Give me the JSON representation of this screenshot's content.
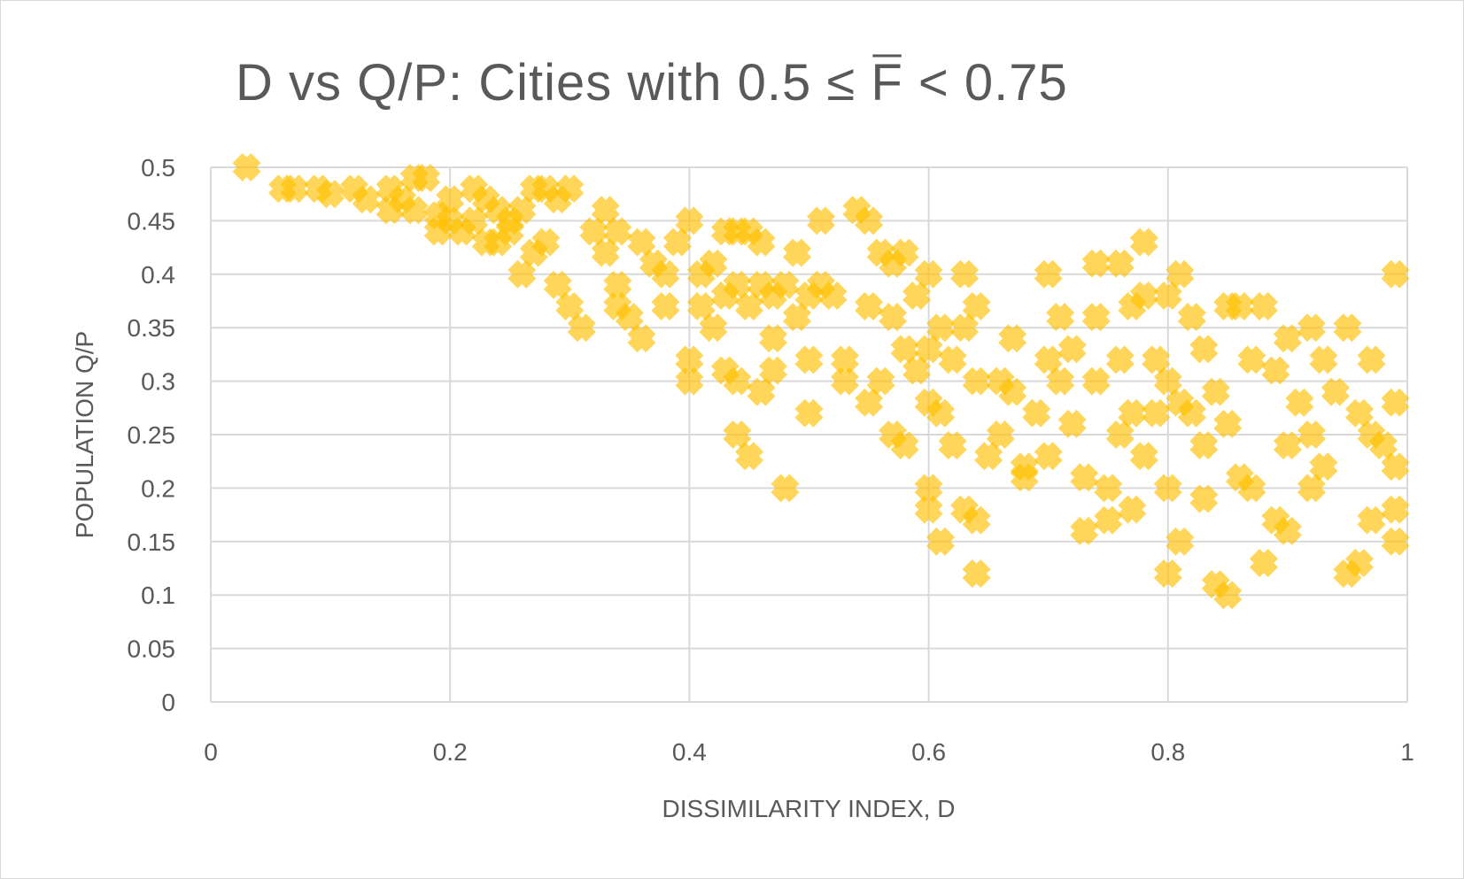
{
  "chart_data": {
    "type": "scatter",
    "title": "D  vs Q/P: Cities with 0.5 ≤  F̅ < 0.75",
    "title_parts": {
      "prefix": "D  vs Q/P: Cities with 0.5 ≤ ",
      "overbar_letter": "F",
      "suffix": " < 0.75"
    },
    "xlabel": "DISSIMILARITY INDEX, D",
    "ylabel": "POPULATION Q/P",
    "xlim": [
      0,
      1
    ],
    "ylim": [
      0,
      0.5
    ],
    "x_ticks": [
      "0",
      "0.2",
      "0.4",
      "0.6",
      "0.8",
      "1"
    ],
    "y_ticks": [
      "0",
      "0.05",
      "0.1",
      "0.15",
      "0.2",
      "0.25",
      "0.3",
      "0.35",
      "0.4",
      "0.45",
      "0.5"
    ],
    "grid": true,
    "legend": "none",
    "marker": "x",
    "color": "#ffc000",
    "series": [
      {
        "name": "Cities",
        "points": [
          [
            0.03,
            0.5
          ],
          [
            0.06,
            0.48
          ],
          [
            0.07,
            0.48
          ],
          [
            0.09,
            0.48
          ],
          [
            0.1,
            0.475
          ],
          [
            0.12,
            0.48
          ],
          [
            0.13,
            0.47
          ],
          [
            0.15,
            0.48
          ],
          [
            0.15,
            0.46
          ],
          [
            0.16,
            0.47
          ],
          [
            0.17,
            0.49
          ],
          [
            0.17,
            0.46
          ],
          [
            0.18,
            0.49
          ],
          [
            0.19,
            0.455
          ],
          [
            0.19,
            0.44
          ],
          [
            0.2,
            0.47
          ],
          [
            0.2,
            0.45
          ],
          [
            0.21,
            0.44
          ],
          [
            0.22,
            0.48
          ],
          [
            0.22,
            0.45
          ],
          [
            0.23,
            0.47
          ],
          [
            0.23,
            0.43
          ],
          [
            0.24,
            0.46
          ],
          [
            0.24,
            0.43
          ],
          [
            0.25,
            0.45
          ],
          [
            0.25,
            0.44
          ],
          [
            0.26,
            0.4
          ],
          [
            0.26,
            0.46
          ],
          [
            0.27,
            0.48
          ],
          [
            0.27,
            0.42
          ],
          [
            0.28,
            0.48
          ],
          [
            0.28,
            0.43
          ],
          [
            0.29,
            0.47
          ],
          [
            0.29,
            0.39
          ],
          [
            0.3,
            0.48
          ],
          [
            0.3,
            0.37
          ],
          [
            0.31,
            0.35
          ],
          [
            0.32,
            0.44
          ],
          [
            0.33,
            0.46
          ],
          [
            0.33,
            0.42
          ],
          [
            0.34,
            0.44
          ],
          [
            0.34,
            0.39
          ],
          [
            0.34,
            0.37
          ],
          [
            0.35,
            0.36
          ],
          [
            0.36,
            0.43
          ],
          [
            0.36,
            0.34
          ],
          [
            0.37,
            0.41
          ],
          [
            0.38,
            0.4
          ],
          [
            0.38,
            0.37
          ],
          [
            0.39,
            0.43
          ],
          [
            0.4,
            0.45
          ],
          [
            0.4,
            0.3
          ],
          [
            0.4,
            0.32
          ],
          [
            0.41,
            0.4
          ],
          [
            0.41,
            0.37
          ],
          [
            0.42,
            0.41
          ],
          [
            0.42,
            0.35
          ],
          [
            0.43,
            0.44
          ],
          [
            0.43,
            0.38
          ],
          [
            0.43,
            0.31
          ],
          [
            0.44,
            0.44
          ],
          [
            0.44,
            0.39
          ],
          [
            0.44,
            0.3
          ],
          [
            0.44,
            0.25
          ],
          [
            0.45,
            0.44
          ],
          [
            0.45,
            0.37
          ],
          [
            0.45,
            0.23
          ],
          [
            0.46,
            0.43
          ],
          [
            0.46,
            0.39
          ],
          [
            0.46,
            0.29
          ],
          [
            0.47,
            0.38
          ],
          [
            0.47,
            0.34
          ],
          [
            0.47,
            0.31
          ],
          [
            0.48,
            0.2
          ],
          [
            0.48,
            0.39
          ],
          [
            0.49,
            0.42
          ],
          [
            0.49,
            0.36
          ],
          [
            0.5,
            0.38
          ],
          [
            0.5,
            0.32
          ],
          [
            0.51,
            0.45
          ],
          [
            0.51,
            0.39
          ],
          [
            0.5,
            0.27
          ],
          [
            0.52,
            0.38
          ],
          [
            0.53,
            0.32
          ],
          [
            0.53,
            0.3
          ],
          [
            0.54,
            0.46
          ],
          [
            0.55,
            0.45
          ],
          [
            0.55,
            0.37
          ],
          [
            0.55,
            0.28
          ],
          [
            0.56,
            0.42
          ],
          [
            0.56,
            0.3
          ],
          [
            0.57,
            0.41
          ],
          [
            0.57,
            0.36
          ],
          [
            0.57,
            0.25
          ],
          [
            0.58,
            0.42
          ],
          [
            0.58,
            0.33
          ],
          [
            0.58,
            0.24
          ],
          [
            0.59,
            0.38
          ],
          [
            0.59,
            0.31
          ],
          [
            0.6,
            0.4
          ],
          [
            0.6,
            0.33
          ],
          [
            0.6,
            0.28
          ],
          [
            0.6,
            0.2
          ],
          [
            0.6,
            0.18
          ],
          [
            0.61,
            0.35
          ],
          [
            0.61,
            0.27
          ],
          [
            0.61,
            0.15
          ],
          [
            0.62,
            0.32
          ],
          [
            0.62,
            0.24
          ],
          [
            0.63,
            0.4
          ],
          [
            0.63,
            0.35
          ],
          [
            0.63,
            0.18
          ],
          [
            0.64,
            0.37
          ],
          [
            0.64,
            0.3
          ],
          [
            0.64,
            0.17
          ],
          [
            0.64,
            0.12
          ],
          [
            0.65,
            0.23
          ],
          [
            0.66,
            0.3
          ],
          [
            0.66,
            0.25
          ],
          [
            0.67,
            0.34
          ],
          [
            0.67,
            0.29
          ],
          [
            0.68,
            0.22
          ],
          [
            0.68,
            0.21
          ],
          [
            0.69,
            0.27
          ],
          [
            0.7,
            0.4
          ],
          [
            0.7,
            0.32
          ],
          [
            0.7,
            0.23
          ],
          [
            0.71,
            0.36
          ],
          [
            0.71,
            0.3
          ],
          [
            0.72,
            0.33
          ],
          [
            0.72,
            0.26
          ],
          [
            0.73,
            0.21
          ],
          [
            0.73,
            0.16
          ],
          [
            0.74,
            0.41
          ],
          [
            0.74,
            0.36
          ],
          [
            0.74,
            0.3
          ],
          [
            0.75,
            0.2
          ],
          [
            0.75,
            0.17
          ],
          [
            0.76,
            0.41
          ],
          [
            0.76,
            0.32
          ],
          [
            0.76,
            0.25
          ],
          [
            0.77,
            0.37
          ],
          [
            0.77,
            0.27
          ],
          [
            0.77,
            0.18
          ],
          [
            0.78,
            0.43
          ],
          [
            0.78,
            0.38
          ],
          [
            0.78,
            0.23
          ],
          [
            0.79,
            0.32
          ],
          [
            0.79,
            0.27
          ],
          [
            0.8,
            0.38
          ],
          [
            0.8,
            0.3
          ],
          [
            0.8,
            0.2
          ],
          [
            0.8,
            0.12
          ],
          [
            0.81,
            0.4
          ],
          [
            0.81,
            0.28
          ],
          [
            0.81,
            0.15
          ],
          [
            0.82,
            0.36
          ],
          [
            0.82,
            0.27
          ],
          [
            0.83,
            0.33
          ],
          [
            0.83,
            0.24
          ],
          [
            0.83,
            0.19
          ],
          [
            0.84,
            0.29
          ],
          [
            0.84,
            0.11
          ],
          [
            0.85,
            0.37
          ],
          [
            0.85,
            0.26
          ],
          [
            0.85,
            0.1
          ],
          [
            0.86,
            0.37
          ],
          [
            0.86,
            0.21
          ],
          [
            0.87,
            0.32
          ],
          [
            0.87,
            0.2
          ],
          [
            0.88,
            0.37
          ],
          [
            0.88,
            0.13
          ],
          [
            0.89,
            0.31
          ],
          [
            0.89,
            0.17
          ],
          [
            0.9,
            0.34
          ],
          [
            0.9,
            0.24
          ],
          [
            0.9,
            0.16
          ],
          [
            0.91,
            0.28
          ],
          [
            0.92,
            0.35
          ],
          [
            0.92,
            0.25
          ],
          [
            0.92,
            0.2
          ],
          [
            0.93,
            0.32
          ],
          [
            0.93,
            0.22
          ],
          [
            0.94,
            0.29
          ],
          [
            0.95,
            0.35
          ],
          [
            0.95,
            0.12
          ],
          [
            0.96,
            0.27
          ],
          [
            0.96,
            0.13
          ],
          [
            0.97,
            0.32
          ],
          [
            0.97,
            0.25
          ],
          [
            0.97,
            0.17
          ],
          [
            0.98,
            0.24
          ],
          [
            0.99,
            0.4
          ],
          [
            0.99,
            0.28
          ],
          [
            0.99,
            0.22
          ],
          [
            0.99,
            0.18
          ],
          [
            0.99,
            0.15
          ]
        ]
      }
    ]
  }
}
